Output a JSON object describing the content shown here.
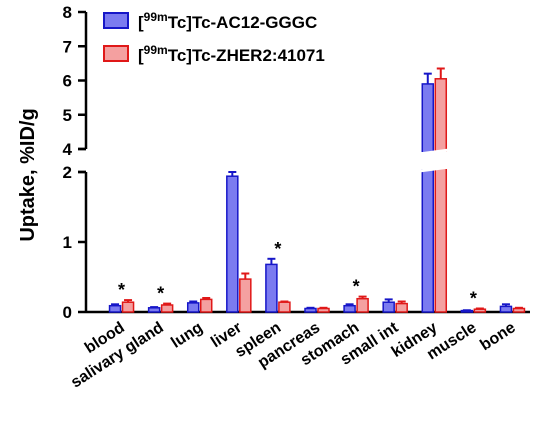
{
  "chart_data": {
    "type": "bar",
    "ylabel": "Uptake, %ID/g",
    "y_axis_break": [
      2,
      4
    ],
    "ylim_lower": [
      0,
      2
    ],
    "ylim_upper": [
      4,
      8
    ],
    "yticks_lower": [
      "0",
      "1",
      "2"
    ],
    "yticks_upper": [
      "4",
      "5",
      "6",
      "7",
      "8"
    ],
    "categories": [
      "blood",
      "salivary gland",
      "lung",
      "liver",
      "spleen",
      "pancreas",
      "stomach",
      "small int",
      "kidney",
      "muscle",
      "bone"
    ],
    "series": [
      {
        "name": "Tc-AC12-GGGC",
        "label_prefix": "[",
        "label_superscript": "99m",
        "label_suffix": "Tc]Tc-AC12-GGGC",
        "color": "#7b7bf0",
        "edge": "#1616c8",
        "values": [
          0.09,
          0.06,
          0.13,
          1.94,
          0.68,
          0.05,
          0.09,
          0.14,
          5.9,
          0.02,
          0.08
        ],
        "errors": [
          0.02,
          0.01,
          0.02,
          0.07,
          0.08,
          0.01,
          0.02,
          0.04,
          0.3,
          0.005,
          0.03
        ]
      },
      {
        "name": "Tc-ZHER2:41071",
        "label_prefix": "[",
        "label_superscript": "99m",
        "label_suffix": "Tc]Tc-ZHER2:41071",
        "color": "#f4a0a0",
        "edge": "#e01818",
        "values": [
          0.14,
          0.1,
          0.18,
          0.47,
          0.14,
          0.05,
          0.19,
          0.12,
          6.05,
          0.04,
          0.05
        ],
        "errors": [
          0.03,
          0.02,
          0.02,
          0.08,
          0.01,
          0.01,
          0.03,
          0.03,
          0.3,
          0.01,
          0.01
        ]
      }
    ],
    "significance": [
      "*",
      "*",
      "",
      "*",
      "*",
      "",
      "*",
      "",
      "",
      "*",
      ""
    ],
    "legend_position": "top-left"
  }
}
